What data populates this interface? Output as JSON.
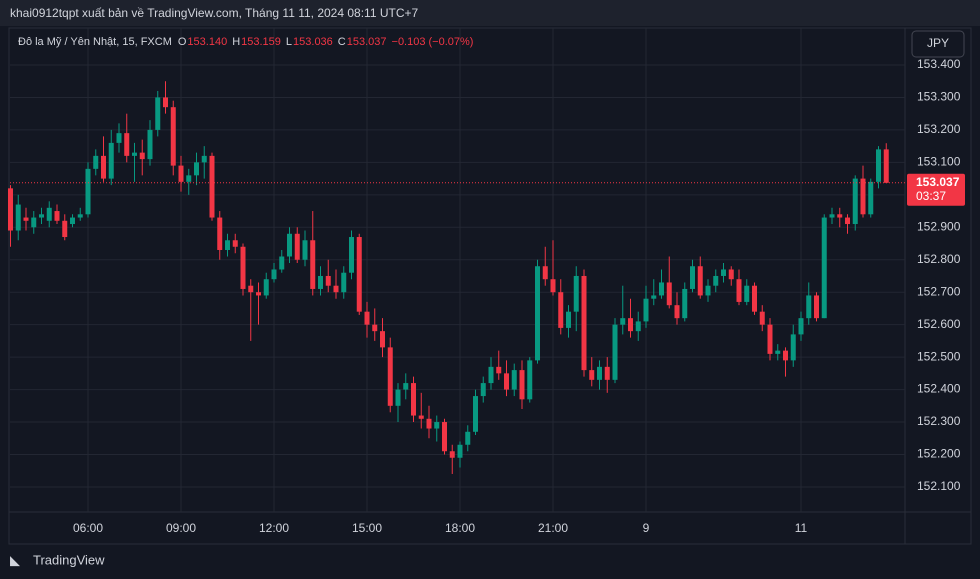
{
  "header": {
    "publisher": "khai0912tqpt xuất bản về TradingView.com, Tháng 11 11, 2024 08:11 UTC+7"
  },
  "brand": "TradingView",
  "chart_data": {
    "type": "candlestick",
    "symbol": "Đô la Mỹ / Yên Nhật, 15, FXCM",
    "ohlc_header": [
      [
        "O",
        "153.140"
      ],
      [
        "H",
        "153.159"
      ],
      [
        "L",
        "153.036"
      ],
      [
        "C",
        "153.037"
      ]
    ],
    "change": "−0.103 (−0.07%)",
    "currency": "JPY",
    "last_price": {
      "value": 153.037,
      "label": "153.037"
    },
    "countdown": "03:37",
    "up_color": "#089981",
    "down_color": "#f23645",
    "grid": true,
    "ylim": [
      152.029,
      153.44
    ],
    "yticks": [
      {
        "value": 153.4,
        "label": "153.400"
      },
      {
        "value": 153.3,
        "label": "153.300"
      },
      {
        "value": 153.2,
        "label": "153.200"
      },
      {
        "value": 153.1,
        "label": "153.100"
      },
      {
        "value": 153.0,
        "label": "153.000"
      },
      {
        "value": 152.9,
        "label": "152.900"
      },
      {
        "value": 152.8,
        "label": "152.800"
      },
      {
        "value": 152.7,
        "label": "152.700"
      },
      {
        "value": 152.6,
        "label": "152.600"
      },
      {
        "value": 152.5,
        "label": "152.500"
      },
      {
        "value": 152.4,
        "label": "152.400"
      },
      {
        "value": 152.3,
        "label": "152.300"
      },
      {
        "value": 152.2,
        "label": "152.200"
      },
      {
        "value": 152.1,
        "label": "152.100"
      }
    ],
    "categories": [
      null,
      null,
      null,
      null,
      null,
      null,
      null,
      null,
      null,
      null,
      "06:00",
      null,
      null,
      null,
      null,
      null,
      null,
      null,
      null,
      null,
      null,
      null,
      "09:00",
      null,
      null,
      null,
      null,
      null,
      null,
      null,
      null,
      null,
      null,
      null,
      "12:00",
      null,
      null,
      null,
      null,
      null,
      null,
      null,
      null,
      null,
      null,
      null,
      "15:00",
      null,
      null,
      null,
      null,
      null,
      null,
      null,
      null,
      null,
      null,
      null,
      "18:00",
      null,
      null,
      null,
      null,
      null,
      null,
      null,
      null,
      null,
      null,
      null,
      "21:00",
      null,
      null,
      null,
      null,
      null,
      null,
      null,
      null,
      null,
      null,
      null,
      "9",
      null,
      null,
      null,
      null,
      null,
      null,
      null,
      null,
      null,
      null,
      null,
      null,
      null,
      null,
      null,
      null,
      null,
      null,
      null,
      "11",
      null,
      null,
      null,
      null,
      null,
      null,
      null,
      null,
      null,
      null,
      null
    ],
    "candles": [
      {
        "o": 153.02,
        "h": 153.03,
        "l": 152.84,
        "c": 152.89
      },
      {
        "o": 152.89,
        "h": 153.0,
        "l": 152.86,
        "c": 152.97
      },
      {
        "o": 152.93,
        "h": 152.96,
        "l": 152.89,
        "c": 152.92
      },
      {
        "o": 152.9,
        "h": 152.95,
        "l": 152.88,
        "c": 152.93
      },
      {
        "o": 152.93,
        "h": 152.96,
        "l": 152.91,
        "c": 152.94
      },
      {
        "o": 152.92,
        "h": 152.98,
        "l": 152.9,
        "c": 152.96
      },
      {
        "o": 152.95,
        "h": 152.97,
        "l": 152.91,
        "c": 152.92
      },
      {
        "o": 152.92,
        "h": 152.94,
        "l": 152.86,
        "c": 152.87
      },
      {
        "o": 152.91,
        "h": 152.94,
        "l": 152.9,
        "c": 152.93
      },
      {
        "o": 152.93,
        "h": 152.96,
        "l": 152.92,
        "c": 152.94
      },
      {
        "o": 152.94,
        "h": 153.1,
        "l": 152.93,
        "c": 153.08
      },
      {
        "o": 153.08,
        "h": 153.14,
        "l": 153.06,
        "c": 153.12
      },
      {
        "o": 153.12,
        "h": 153.18,
        "l": 153.04,
        "c": 153.05
      },
      {
        "o": 153.05,
        "h": 153.2,
        "l": 153.03,
        "c": 153.16
      },
      {
        "o": 153.16,
        "h": 153.22,
        "l": 153.13,
        "c": 153.19
      },
      {
        "o": 153.19,
        "h": 153.25,
        "l": 153.1,
        "c": 153.12
      },
      {
        "o": 153.12,
        "h": 153.16,
        "l": 153.04,
        "c": 153.13
      },
      {
        "o": 153.13,
        "h": 153.17,
        "l": 153.06,
        "c": 153.11
      },
      {
        "o": 153.11,
        "h": 153.23,
        "l": 153.09,
        "c": 153.2
      },
      {
        "o": 153.2,
        "h": 153.32,
        "l": 153.18,
        "c": 153.3
      },
      {
        "o": 153.3,
        "h": 153.35,
        "l": 153.25,
        "c": 153.27
      },
      {
        "o": 153.27,
        "h": 153.29,
        "l": 153.06,
        "c": 153.09
      },
      {
        "o": 153.09,
        "h": 153.12,
        "l": 153.01,
        "c": 153.04
      },
      {
        "o": 153.04,
        "h": 153.08,
        "l": 153.0,
        "c": 153.06
      },
      {
        "o": 153.06,
        "h": 153.13,
        "l": 153.03,
        "c": 153.1
      },
      {
        "o": 153.1,
        "h": 153.15,
        "l": 153.05,
        "c": 153.12
      },
      {
        "o": 153.12,
        "h": 153.13,
        "l": 152.92,
        "c": 152.93
      },
      {
        "o": 152.93,
        "h": 152.95,
        "l": 152.8,
        "c": 152.83
      },
      {
        "o": 152.83,
        "h": 152.88,
        "l": 152.81,
        "c": 152.86
      },
      {
        "o": 152.86,
        "h": 152.88,
        "l": 152.82,
        "c": 152.84
      },
      {
        "o": 152.84,
        "h": 152.85,
        "l": 152.69,
        "c": 152.71
      },
      {
        "o": 152.72,
        "h": 152.74,
        "l": 152.55,
        "c": 152.7
      },
      {
        "o": 152.7,
        "h": 152.73,
        "l": 152.6,
        "c": 152.69
      },
      {
        "o": 152.69,
        "h": 152.76,
        "l": 152.68,
        "c": 152.74
      },
      {
        "o": 152.74,
        "h": 152.79,
        "l": 152.73,
        "c": 152.77
      },
      {
        "o": 152.77,
        "h": 152.83,
        "l": 152.76,
        "c": 152.81
      },
      {
        "o": 152.81,
        "h": 152.9,
        "l": 152.79,
        "c": 152.88
      },
      {
        "o": 152.88,
        "h": 152.9,
        "l": 152.79,
        "c": 152.8
      },
      {
        "o": 152.8,
        "h": 152.89,
        "l": 152.78,
        "c": 152.86
      },
      {
        "o": 152.86,
        "h": 152.95,
        "l": 152.69,
        "c": 152.71
      },
      {
        "o": 152.71,
        "h": 152.78,
        "l": 152.69,
        "c": 152.75
      },
      {
        "o": 152.75,
        "h": 152.8,
        "l": 152.7,
        "c": 152.72
      },
      {
        "o": 152.72,
        "h": 152.77,
        "l": 152.68,
        "c": 152.7
      },
      {
        "o": 152.7,
        "h": 152.78,
        "l": 152.68,
        "c": 152.76
      },
      {
        "o": 152.76,
        "h": 152.89,
        "l": 152.74,
        "c": 152.87
      },
      {
        "o": 152.87,
        "h": 152.88,
        "l": 152.63,
        "c": 152.64
      },
      {
        "o": 152.64,
        "h": 152.67,
        "l": 152.56,
        "c": 152.6
      },
      {
        "o": 152.6,
        "h": 152.65,
        "l": 152.55,
        "c": 152.58
      },
      {
        "o": 152.58,
        "h": 152.62,
        "l": 152.5,
        "c": 152.53
      },
      {
        "o": 152.53,
        "h": 152.56,
        "l": 152.33,
        "c": 152.35
      },
      {
        "o": 152.35,
        "h": 152.42,
        "l": 152.3,
        "c": 152.4
      },
      {
        "o": 152.4,
        "h": 152.45,
        "l": 152.37,
        "c": 152.42
      },
      {
        "o": 152.42,
        "h": 152.44,
        "l": 152.3,
        "c": 152.32
      },
      {
        "o": 152.32,
        "h": 152.39,
        "l": 152.28,
        "c": 152.31
      },
      {
        "o": 152.31,
        "h": 152.35,
        "l": 152.25,
        "c": 152.28
      },
      {
        "o": 152.28,
        "h": 152.32,
        "l": 152.24,
        "c": 152.3
      },
      {
        "o": 152.3,
        "h": 152.31,
        "l": 152.2,
        "c": 152.21
      },
      {
        "o": 152.21,
        "h": 152.23,
        "l": 152.14,
        "c": 152.19
      },
      {
        "o": 152.19,
        "h": 152.24,
        "l": 152.16,
        "c": 152.23
      },
      {
        "o": 152.23,
        "h": 152.29,
        "l": 152.21,
        "c": 152.27
      },
      {
        "o": 152.27,
        "h": 152.4,
        "l": 152.26,
        "c": 152.38
      },
      {
        "o": 152.38,
        "h": 152.44,
        "l": 152.36,
        "c": 152.42
      },
      {
        "o": 152.42,
        "h": 152.5,
        "l": 152.4,
        "c": 152.47
      },
      {
        "o": 152.47,
        "h": 152.52,
        "l": 152.43,
        "c": 152.45
      },
      {
        "o": 152.45,
        "h": 152.49,
        "l": 152.38,
        "c": 152.4
      },
      {
        "o": 152.4,
        "h": 152.48,
        "l": 152.38,
        "c": 152.46
      },
      {
        "o": 152.46,
        "h": 152.49,
        "l": 152.34,
        "c": 152.37
      },
      {
        "o": 152.37,
        "h": 152.5,
        "l": 152.36,
        "c": 152.49
      },
      {
        "o": 152.49,
        "h": 152.8,
        "l": 152.48,
        "c": 152.78
      },
      {
        "o": 152.78,
        "h": 152.84,
        "l": 152.72,
        "c": 152.74
      },
      {
        "o": 152.74,
        "h": 152.86,
        "l": 152.69,
        "c": 152.7
      },
      {
        "o": 152.7,
        "h": 152.74,
        "l": 152.57,
        "c": 152.59
      },
      {
        "o": 152.59,
        "h": 152.66,
        "l": 152.56,
        "c": 152.64
      },
      {
        "o": 152.64,
        "h": 152.78,
        "l": 152.58,
        "c": 152.75
      },
      {
        "o": 152.75,
        "h": 152.77,
        "l": 152.44,
        "c": 152.46
      },
      {
        "o": 152.46,
        "h": 152.5,
        "l": 152.41,
        "c": 152.43
      },
      {
        "o": 152.43,
        "h": 152.49,
        "l": 152.4,
        "c": 152.47
      },
      {
        "o": 152.47,
        "h": 152.5,
        "l": 152.39,
        "c": 152.43
      },
      {
        "o": 152.43,
        "h": 152.62,
        "l": 152.42,
        "c": 152.6
      },
      {
        "o": 152.6,
        "h": 152.72,
        "l": 152.57,
        "c": 152.62
      },
      {
        "o": 152.62,
        "h": 152.68,
        "l": 152.56,
        "c": 152.58
      },
      {
        "o": 152.58,
        "h": 152.64,
        "l": 152.55,
        "c": 152.61
      },
      {
        "o": 152.61,
        "h": 152.72,
        "l": 152.59,
        "c": 152.68
      },
      {
        "o": 152.68,
        "h": 152.74,
        "l": 152.66,
        "c": 152.69
      },
      {
        "o": 152.69,
        "h": 152.77,
        "l": 152.68,
        "c": 152.73
      },
      {
        "o": 152.73,
        "h": 152.81,
        "l": 152.65,
        "c": 152.66
      },
      {
        "o": 152.66,
        "h": 152.7,
        "l": 152.6,
        "c": 152.62
      },
      {
        "o": 152.62,
        "h": 152.73,
        "l": 152.61,
        "c": 152.71
      },
      {
        "o": 152.71,
        "h": 152.8,
        "l": 152.7,
        "c": 152.78
      },
      {
        "o": 152.78,
        "h": 152.81,
        "l": 152.68,
        "c": 152.69
      },
      {
        "o": 152.69,
        "h": 152.74,
        "l": 152.67,
        "c": 152.72
      },
      {
        "o": 152.72,
        "h": 152.77,
        "l": 152.7,
        "c": 152.75
      },
      {
        "o": 152.75,
        "h": 152.79,
        "l": 152.73,
        "c": 152.77
      },
      {
        "o": 152.77,
        "h": 152.78,
        "l": 152.72,
        "c": 152.74
      },
      {
        "o": 152.74,
        "h": 152.77,
        "l": 152.66,
        "c": 152.67
      },
      {
        "o": 152.67,
        "h": 152.74,
        "l": 152.66,
        "c": 152.72
      },
      {
        "o": 152.72,
        "h": 152.73,
        "l": 152.63,
        "c": 152.64
      },
      {
        "o": 152.64,
        "h": 152.66,
        "l": 152.58,
        "c": 152.6
      },
      {
        "o": 152.6,
        "h": 152.62,
        "l": 152.49,
        "c": 152.51
      },
      {
        "o": 152.51,
        "h": 152.54,
        "l": 152.49,
        "c": 152.52
      },
      {
        "o": 152.52,
        "h": 152.53,
        "l": 152.44,
        "c": 152.49
      },
      {
        "o": 152.49,
        "h": 152.6,
        "l": 152.47,
        "c": 152.57
      },
      {
        "o": 152.57,
        "h": 152.64,
        "l": 152.55,
        "c": 152.62
      },
      {
        "o": 152.62,
        "h": 152.73,
        "l": 152.6,
        "c": 152.69
      },
      {
        "o": 152.69,
        "h": 152.7,
        "l": 152.61,
        "c": 152.62
      },
      {
        "o": 152.62,
        "h": 152.94,
        "l": 152.62,
        "c": 152.93
      },
      {
        "o": 152.93,
        "h": 152.96,
        "l": 152.91,
        "c": 152.94
      },
      {
        "o": 152.94,
        "h": 152.96,
        "l": 152.9,
        "c": 152.93
      },
      {
        "o": 152.93,
        "h": 152.94,
        "l": 152.88,
        "c": 152.91
      },
      {
        "o": 152.91,
        "h": 153.06,
        "l": 152.89,
        "c": 153.05
      },
      {
        "o": 153.05,
        "h": 153.09,
        "l": 152.93,
        "c": 152.94
      },
      {
        "o": 152.94,
        "h": 153.05,
        "l": 152.93,
        "c": 153.04
      },
      {
        "o": 153.04,
        "h": 153.15,
        "l": 153.02,
        "c": 153.14
      },
      {
        "o": 153.14,
        "h": 153.159,
        "l": 153.036,
        "c": 153.037
      }
    ]
  }
}
